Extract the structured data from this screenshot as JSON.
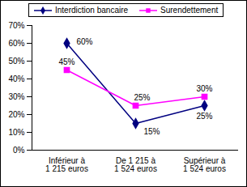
{
  "chart_data": {
    "type": "line",
    "categories": [
      "Inférieur à 1 215 euros",
      "De 1 215 à 1 524 euros",
      "Supérieur à 1 524 euros"
    ],
    "series": [
      {
        "name": "Interdiction bancaire",
        "color": "#000080",
        "marker": "diamond",
        "values": [
          60,
          15,
          25
        ],
        "value_labels": [
          "60%",
          "15%",
          "25%"
        ]
      },
      {
        "name": "Surendettement",
        "color": "#ff00ff",
        "marker": "square",
        "values": [
          45,
          25,
          30
        ],
        "value_labels": [
          "45%",
          "25%",
          "30%"
        ]
      }
    ],
    "ylim": [
      0,
      70
    ],
    "yticks": [
      {
        "value": 0,
        "label": "0%"
      },
      {
        "value": 10,
        "label": "10%"
      },
      {
        "value": 20,
        "label": "20%"
      },
      {
        "value": 30,
        "label": "30%"
      },
      {
        "value": 40,
        "label": "40%"
      },
      {
        "value": 50,
        "label": "50%"
      },
      {
        "value": 60,
        "label": "60%"
      },
      {
        "value": 70,
        "label": "70%"
      }
    ],
    "grid": false,
    "legend": "top",
    "data_labels": true
  }
}
